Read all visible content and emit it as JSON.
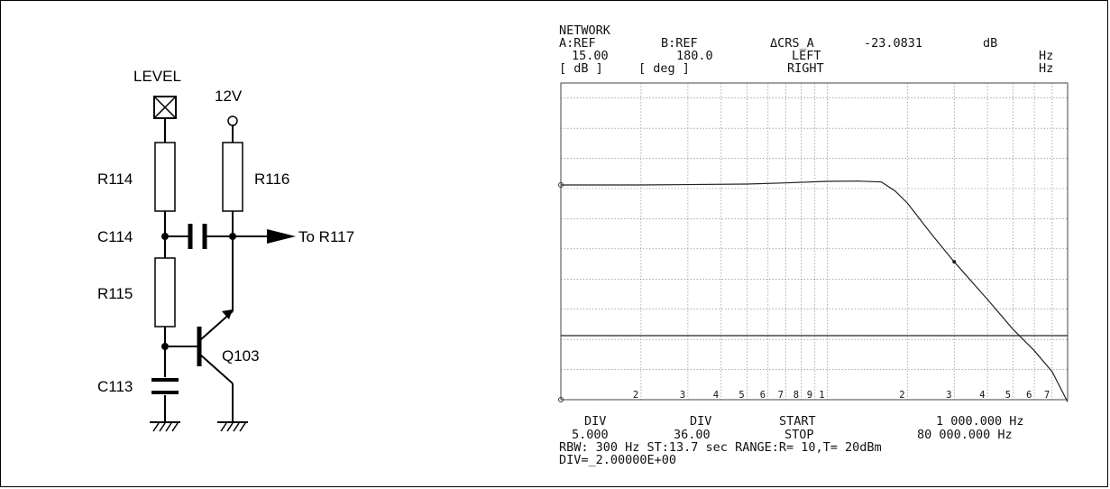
{
  "schematic": {
    "labels": {
      "level": "LEVEL",
      "supply": "12V",
      "r114": "R114",
      "r116": "R116",
      "c114": "C114",
      "to_r117": "To R117",
      "r115": "R115",
      "q103": "Q103",
      "c113": "C113"
    }
  },
  "analyzer": {
    "header": {
      "line1": "NETWORK",
      "a_ref": "A:REF",
      "b_ref": "B:REF",
      "crs": "ΔCRS_A",
      "crs_value": "-23.0831",
      "crs_unit": "dB",
      "a_value": "15.00",
      "b_value": "180.0",
      "left": "LEFT",
      "hz_top": "Hz",
      "a_units": "[  dB    ]",
      "b_units": "[  deg   ]",
      "right": "RIGHT",
      "hz_bottom": "Hz"
    },
    "x_tick_labels": [
      "2",
      "3",
      "4",
      "5",
      "6",
      "7",
      "8",
      "9",
      "1",
      "2",
      "3",
      "4",
      "5",
      "6",
      "7"
    ],
    "footer": {
      "div_a_label": "DIV",
      "div_b_label": "DIV",
      "start_label": "START",
      "start_value": "1 000.000 Hz",
      "div_a_value": "5.000",
      "div_b_value": "36.00",
      "stop_label": "STOP",
      "stop_value": "80 000.000 Hz",
      "rbw_line": "RBW: 300 Hz ST:13.7 sec RANGE:R= 10,T= 20dBm",
      "div_line": "DIV=_2.00000E+00"
    }
  },
  "chart_data": {
    "type": "line",
    "x_scale": "log",
    "x_range_hz": [
      1000,
      80000
    ],
    "grid": true,
    "x_decade_ticks_hz": [
      1000,
      2000,
      3000,
      4000,
      5000,
      6000,
      7000,
      8000,
      9000,
      10000,
      20000,
      30000,
      40000,
      50000,
      60000,
      70000
    ],
    "series": [
      {
        "x_hz": [
          1000,
          2000,
          5000,
          7000,
          10000,
          13000,
          16000,
          18000,
          20000,
          25000,
          30000,
          40000,
          50000,
          60000,
          70000,
          80000
        ],
        "y_div": [
          0,
          0,
          0.03,
          0.07,
          0.12,
          0.13,
          0.1,
          -0.2,
          -0.6,
          -1.7,
          -2.55,
          -3.8,
          -4.8,
          -5.5,
          -6.2,
          -7.2
        ]
      },
      {
        "x_hz": [
          1000,
          80000
        ],
        "y_div": [
          -5.0,
          -5.0
        ]
      }
    ]
  }
}
